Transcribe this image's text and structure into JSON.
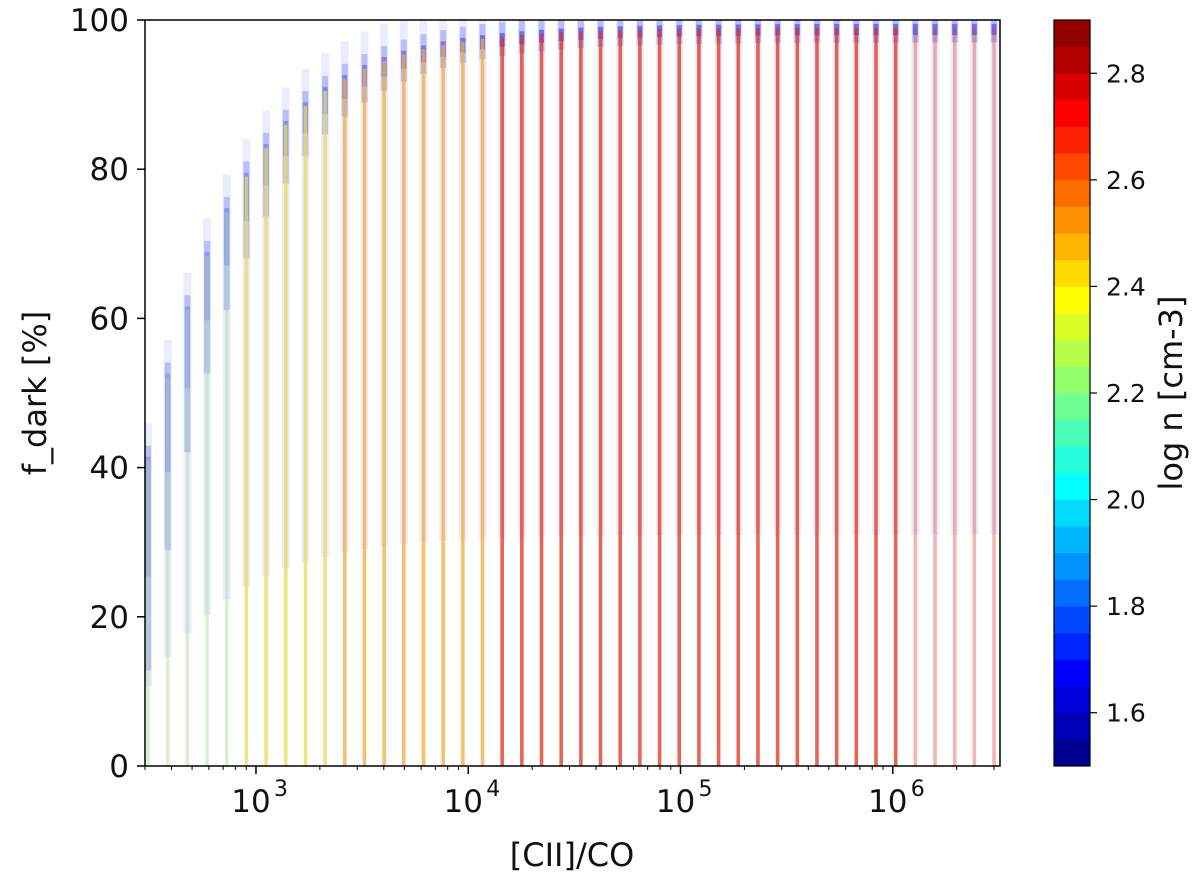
{
  "chart_data": {
    "type": "scatter",
    "title": "",
    "xlabel": "[CII]/CO",
    "ylabel": "f_dark [%]",
    "xscale": "log",
    "xlim": [
      300,
      3200000
    ],
    "ylim": [
      0,
      100
    ],
    "yticks": [
      0,
      20,
      40,
      60,
      80,
      100
    ],
    "xticks": [
      {
        "value": 1000,
        "base": "10",
        "exp": "3"
      },
      {
        "value": 10000,
        "base": "10",
        "exp": "4"
      },
      {
        "value": 100000,
        "base": "10",
        "exp": "5"
      },
      {
        "value": 1000000,
        "base": "10",
        "exp": "6"
      }
    ],
    "grid": false,
    "colorbar": {
      "label": "log n [cm-3]",
      "min": 1.5,
      "max": 2.9,
      "step": 0.05,
      "ticks": [
        "1.6",
        "1.8",
        "2.0",
        "2.2",
        "2.4",
        "2.6",
        "2.8"
      ],
      "colormap": "jet"
    },
    "series_description_values": {
      "x_start": 310,
      "x_end": 3000000,
      "n_columns": 44,
      "fdark_model": "f = 100 * (1 - r0 / x)",
      "r0": 180,
      "low_density_color": "#2233ee",
      "high_density_color": "#e0301e"
    }
  }
}
